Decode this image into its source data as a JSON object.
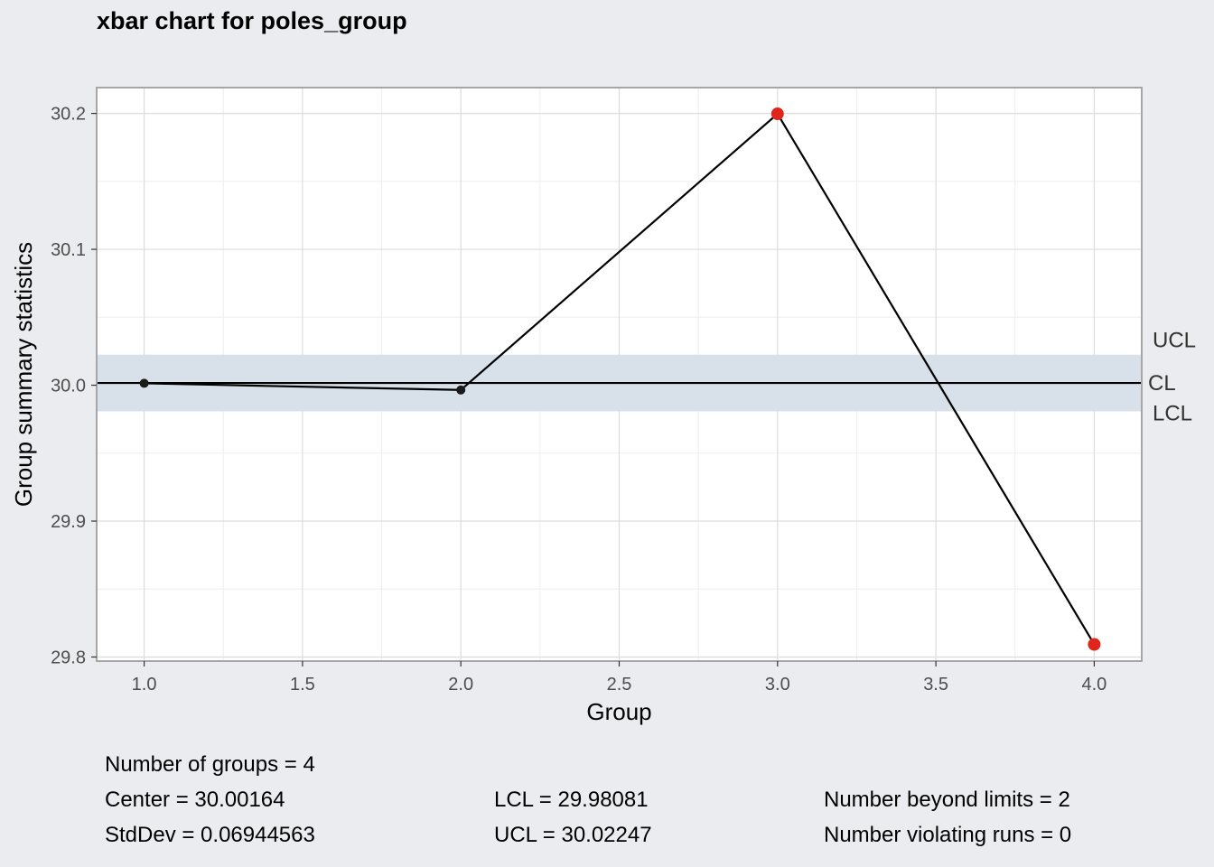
{
  "chart_data": {
    "type": "line",
    "title": "xbar chart for poles_group",
    "xlabel": "Group",
    "ylabel": "Group summary statistics",
    "xlim": [
      0.85,
      4.15
    ],
    "ylim": [
      29.797,
      30.219
    ],
    "x_ticks": [
      1.0,
      1.5,
      2.0,
      2.5,
      3.0,
      3.5,
      4.0
    ],
    "x_tick_labels": [
      "1.0",
      "1.5",
      "2.0",
      "2.5",
      "3.0",
      "3.5",
      "4.0"
    ],
    "y_ticks": [
      29.8,
      29.9,
      30.0,
      30.1,
      30.2
    ],
    "y_tick_labels": [
      "29.8",
      "29.9",
      "30.0",
      "30.1",
      "30.2"
    ],
    "grid": true,
    "points": {
      "x": [
        1,
        2,
        3,
        4
      ],
      "y": [
        30.0014,
        29.9965,
        30.1997,
        29.8093
      ],
      "out_of_limits": [
        false,
        false,
        true,
        true
      ]
    },
    "limits": {
      "UCL": 30.02247,
      "CL": 30.00164,
      "LCL": 29.98081
    },
    "limit_labels": [
      "UCL",
      "CL",
      "LCL"
    ],
    "colors": {
      "background": "#ebecf0",
      "plot_background": "#ffffff",
      "band": "#d8e0ea",
      "line": "#000000",
      "point": "#1a1a1a",
      "violation": "#e0261b",
      "grid": "#dcdcdc"
    }
  },
  "stats": {
    "groups": "Number of groups = 4",
    "center": "Center = 30.00164",
    "stddev": "StdDev = 0.06944563",
    "lcl": "LCL = 29.98081",
    "ucl": "UCL = 30.02247",
    "beyond": "Number beyond limits = 2",
    "runs": "Number violating runs = 0"
  }
}
